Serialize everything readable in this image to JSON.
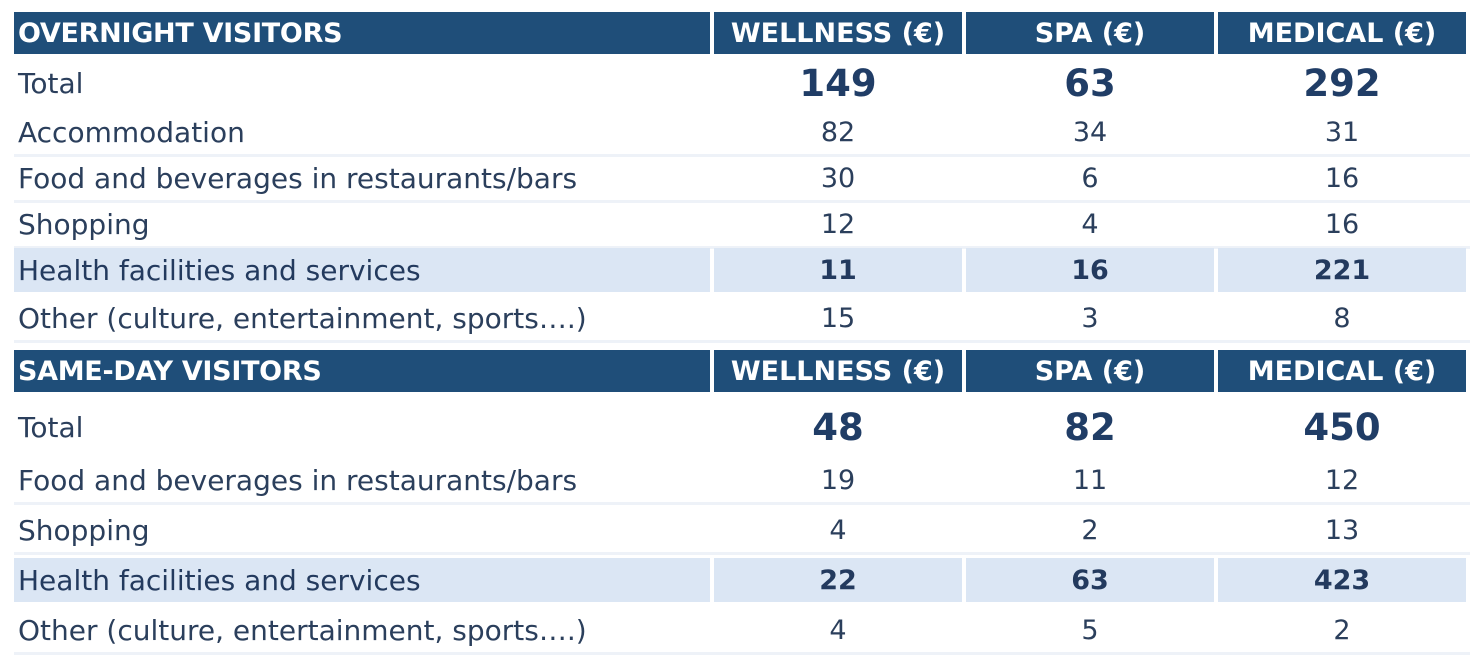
{
  "chart_data": {
    "type": "table",
    "columns": [
      "WELLNESS (€)",
      "SPA (€)",
      "MEDICAL (€)"
    ],
    "sections": [
      {
        "heading": "OVERNIGHT VISITORS",
        "total": {
          "label": "Total",
          "values": [
            "149",
            "63",
            "292"
          ]
        },
        "rows": [
          {
            "label": "Accommodation",
            "values": [
              "82",
              "34",
              "31"
            ],
            "highlight": false
          },
          {
            "label": "Food and beverages in restaurants/bars",
            "values": [
              "30",
              "6",
              "16"
            ],
            "highlight": false
          },
          {
            "label": "Shopping",
            "values": [
              "12",
              "4",
              "16"
            ],
            "highlight": false
          },
          {
            "label": "Health facilities and services",
            "values": [
              "11",
              "16",
              "221"
            ],
            "highlight": true
          },
          {
            "label": "Other (culture, entertainment, sports….)",
            "values": [
              "15",
              "3",
              "8"
            ],
            "highlight": false
          }
        ]
      },
      {
        "heading": "SAME-DAY VISITORS",
        "total": {
          "label": "Total",
          "values": [
            "48",
            "82",
            "450"
          ]
        },
        "rows": [
          {
            "label": "Food and beverages in restaurants/bars",
            "values": [
              "19",
              "11",
              "12"
            ],
            "highlight": false
          },
          {
            "label": "Shopping",
            "values": [
              "4",
              "2",
              "13"
            ],
            "highlight": false
          },
          {
            "label": "Health facilities and services",
            "values": [
              "22",
              "63",
              "423"
            ],
            "highlight": true
          },
          {
            "label": "Other (culture, entertainment, sports….)",
            "values": [
              "4",
              "5",
              "2"
            ],
            "highlight": false
          }
        ]
      }
    ]
  },
  "colors": {
    "header_bg": "#1f4e79",
    "highlight_bg": "#dbe6f4",
    "text": "#2b3f5c"
  }
}
